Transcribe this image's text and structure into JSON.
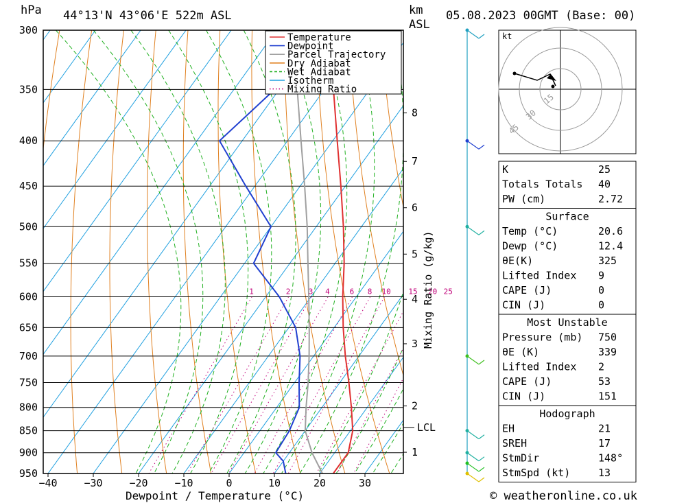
{
  "header": {
    "hpa_unit": "hPa",
    "location": "44°13'N 43°06'E 522m ASL",
    "km_unit": "km",
    "asl_unit": "ASL",
    "datetime": "05.08.2023 00GMT (Base: 00)"
  },
  "axes": {
    "xlabel": "Dewpoint / Temperature (°C)",
    "mixing_label": "Mixing Ratio (g/kg)",
    "lcl_label": "LCL",
    "pressure_ticks": [
      "300",
      "350",
      "400",
      "450",
      "500",
      "550",
      "600",
      "650",
      "700",
      "750",
      "800",
      "850",
      "900",
      "950"
    ],
    "temp_ticks": [
      "−40",
      "−30",
      "−20",
      "−10",
      "0",
      "10",
      "20",
      "30"
    ],
    "km_ticks": [
      "8",
      "7",
      "6",
      "5",
      "4",
      "3",
      "2",
      "1"
    ],
    "mixing_ticks": [
      "1",
      "2",
      "3",
      "4",
      "6",
      "8",
      "10",
      "15",
      "20",
      "25"
    ]
  },
  "legend": {
    "items": [
      {
        "label": "Temperature",
        "color": "#e03030",
        "style": "solid"
      },
      {
        "label": "Dewpoint",
        "color": "#2040d0",
        "style": "solid"
      },
      {
        "label": "Parcel Trajectory",
        "color": "#a0a0a0",
        "style": "solid"
      },
      {
        "label": "Dry Adiabat",
        "color": "#e08020",
        "style": "solid"
      },
      {
        "label": "Wet Adiabat",
        "color": "#20b020",
        "style": "dashed"
      },
      {
        "label": "Isotherm",
        "color": "#20a0e0",
        "style": "solid"
      },
      {
        "label": "Mixing Ratio",
        "color": "#c0007a",
        "style": "dotted"
      }
    ]
  },
  "hodograph": {
    "unit": "kt",
    "rings": [
      "15",
      "30",
      "45"
    ]
  },
  "indices": {
    "top": [
      {
        "label": "K",
        "value": "25"
      },
      {
        "label": "Totals Totals",
        "value": "40"
      },
      {
        "label": "PW (cm)",
        "value": "2.72"
      }
    ],
    "surface": {
      "title": "Surface",
      "rows": [
        {
          "label": "Temp (°C)",
          "value": "20.6"
        },
        {
          "label": "Dewp (°C)",
          "value": "12.4"
        },
        {
          "label": "θE(K)",
          "value": "325"
        },
        {
          "label": "Lifted Index",
          "value": "9"
        },
        {
          "label": "CAPE (J)",
          "value": "0"
        },
        {
          "label": "CIN (J)",
          "value": "0"
        }
      ]
    },
    "most_unstable": {
      "title": "Most Unstable",
      "rows": [
        {
          "label": "Pressure (mb)",
          "value": "750"
        },
        {
          "label": "θE (K)",
          "value": "339"
        },
        {
          "label": "Lifted Index",
          "value": "2"
        },
        {
          "label": "CAPE (J)",
          "value": "53"
        },
        {
          "label": "CIN (J)",
          "value": "151"
        }
      ]
    },
    "hodograph_box": {
      "title": "Hodograph",
      "rows": [
        {
          "label": "EH",
          "value": "21"
        },
        {
          "label": "SREH",
          "value": "17"
        },
        {
          "label": "StmDir",
          "value": "148°"
        },
        {
          "label": "StmSpd (kt)",
          "value": "13"
        }
      ]
    }
  },
  "footer": {
    "copyright": "© weatheronline.co.uk"
  },
  "chart_data": {
    "type": "line",
    "title": "44°13'N 43°06'E 522m ASL",
    "xlabel": "Dewpoint / Temperature (°C)",
    "ylabel": "hPa",
    "y_scale": "log-pressure",
    "ylim": [
      950,
      300
    ],
    "xlim": [
      -40,
      38
    ],
    "skew": "skew-T",
    "series": [
      {
        "name": "Temperature",
        "color": "#e03030",
        "points": [
          [
            950,
            23
          ],
          [
            900,
            23
          ],
          [
            850,
            20.5
          ],
          [
            800,
            16.5
          ],
          [
            750,
            12
          ],
          [
            700,
            7
          ],
          [
            650,
            2
          ],
          [
            600,
            -3
          ],
          [
            550,
            -8
          ],
          [
            500,
            -14
          ],
          [
            450,
            -21
          ],
          [
            400,
            -29
          ],
          [
            350,
            -38
          ],
          [
            300,
            -46
          ]
        ]
      },
      {
        "name": "Dewpoint",
        "color": "#2040d0",
        "points": [
          [
            950,
            12.5
          ],
          [
            920,
            10
          ],
          [
            900,
            7
          ],
          [
            850,
            6.5
          ],
          [
            800,
            5
          ],
          [
            750,
            1
          ],
          [
            700,
            -3
          ],
          [
            650,
            -8.5
          ],
          [
            600,
            -17
          ],
          [
            550,
            -28
          ],
          [
            500,
            -30
          ],
          [
            450,
            -42
          ],
          [
            400,
            -55
          ],
          [
            350,
            -51
          ],
          [
            300,
            -61
          ]
        ]
      },
      {
        "name": "Parcel Trajectory",
        "color": "#a0a0a0",
        "points": [
          [
            950,
            20.6
          ],
          [
            900,
            15
          ],
          [
            850,
            10
          ],
          [
            800,
            6.5
          ],
          [
            750,
            3
          ],
          [
            700,
            -1
          ],
          [
            650,
            -5.5
          ],
          [
            600,
            -10.5
          ],
          [
            550,
            -16
          ],
          [
            500,
            -22
          ],
          [
            450,
            -29
          ],
          [
            400,
            -37
          ],
          [
            350,
            -46
          ],
          [
            300,
            -56
          ]
        ]
      }
    ],
    "wind_barbs_pressure": [
      300,
      400,
      500,
      700,
      850,
      900,
      925,
      950
    ]
  }
}
